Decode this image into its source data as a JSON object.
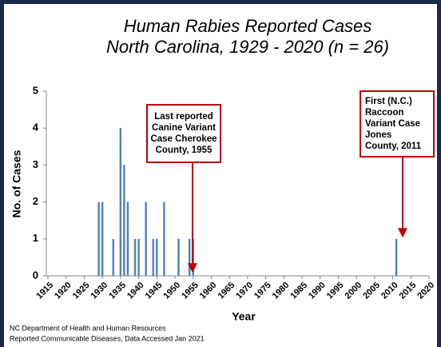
{
  "chart_data": {
    "type": "bar",
    "title": [
      "Human Rabies Reported Cases",
      "North Carolina, 1929 - 2020 (n = 26)"
    ],
    "x": [
      1929,
      1930,
      1933,
      1935,
      1936,
      1937,
      1939,
      1940,
      1942,
      1944,
      1945,
      1947,
      1951,
      1954,
      1955,
      2011
    ],
    "values": [
      2,
      2,
      1,
      4,
      3,
      2,
      1,
      1,
      2,
      1,
      1,
      2,
      1,
      1,
      1,
      1
    ],
    "color": "#4f81bd",
    "xlim": [
      1915,
      2020
    ],
    "xticks": [
      1915,
      1920,
      1925,
      1930,
      1935,
      1940,
      1945,
      1950,
      1955,
      1960,
      1965,
      1970,
      1975,
      1980,
      1985,
      1990,
      1995,
      2000,
      2005,
      2010,
      2015,
      2020
    ],
    "ylim": [
      0,
      5
    ],
    "yticks": [
      0,
      1,
      2,
      3,
      4,
      5
    ],
    "x_label": "Year",
    "y_label": "No. of Cases",
    "annotations": [
      {
        "lines": [
          "Last reported",
          "Canine Variant",
          "Case Cherokee",
          "County, 1955"
        ]
      },
      {
        "lines": [
          "First (N.C.)",
          "Raccoon",
          "Variant Case",
          "Jones",
          "County, 2011"
        ]
      }
    ],
    "source": [
      "NC Department of Health and Human Resources",
      "Reported Communicable Diseases, Data Accessed  Jan 2021"
    ]
  }
}
